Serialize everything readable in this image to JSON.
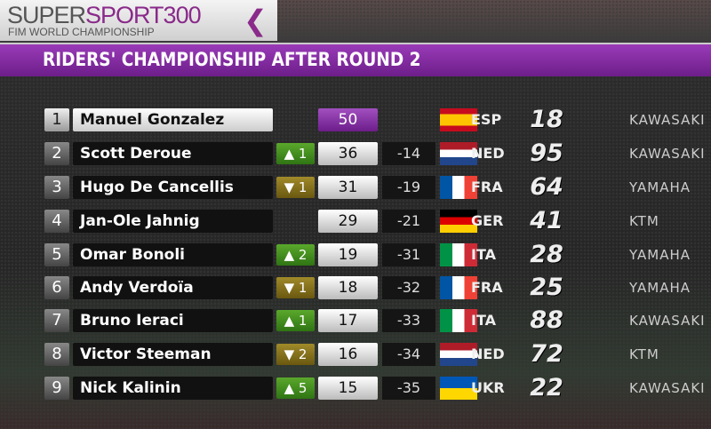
{
  "logo": {
    "brand_a": "SUPER",
    "brand_b": "SPORT300",
    "subtitle": "FIM WORLD CHAMPIONSHIP"
  },
  "title": "RIDERS' CHAMPIONSHIP AFTER ROUND 2",
  "colors": {
    "accent": "#8a2a8a",
    "up": "#4a9a22",
    "down": "#8a7420"
  },
  "rows": [
    {
      "pos": "1",
      "name": "Manuel Gonzalez",
      "change": "",
      "dir": "",
      "points": "50",
      "gap": "",
      "flag": "esp",
      "nation": "ESP",
      "number": "18",
      "maker": "KAWASAKI"
    },
    {
      "pos": "2",
      "name": "Scott Deroue",
      "change": "^ 1",
      "dir": "up",
      "points": "36",
      "gap": "-14",
      "flag": "ned",
      "nation": "NED",
      "number": "95",
      "maker": "KAWASAKI"
    },
    {
      "pos": "3",
      "name": "Hugo De Cancellis",
      "change": "v 1",
      "dir": "down",
      "points": "31",
      "gap": "-19",
      "flag": "fra",
      "nation": "FRA",
      "number": "64",
      "maker": "YAMAHA"
    },
    {
      "pos": "4",
      "name": "Jan-Ole Jahnig",
      "change": "",
      "dir": "",
      "points": "29",
      "gap": "-21",
      "flag": "ger",
      "nation": "GER",
      "number": "41",
      "maker": "KTM"
    },
    {
      "pos": "5",
      "name": "Omar Bonoli",
      "change": "^ 2",
      "dir": "up",
      "points": "19",
      "gap": "-31",
      "flag": "ita",
      "nation": "ITA",
      "number": "28",
      "maker": "YAMAHA"
    },
    {
      "pos": "6",
      "name": "Andy Verdoïa",
      "change": "v 1",
      "dir": "down",
      "points": "18",
      "gap": "-32",
      "flag": "fra",
      "nation": "FRA",
      "number": "25",
      "maker": "YAMAHA"
    },
    {
      "pos": "7",
      "name": "Bruno Ieraci",
      "change": "^ 1",
      "dir": "up",
      "points": "17",
      "gap": "-33",
      "flag": "ita",
      "nation": "ITA",
      "number": "88",
      "maker": "KAWASAKI"
    },
    {
      "pos": "8",
      "name": "Victor Steeman",
      "change": "v 2",
      "dir": "down",
      "points": "16",
      "gap": "-34",
      "flag": "ned",
      "nation": "NED",
      "number": "72",
      "maker": "KTM"
    },
    {
      "pos": "9",
      "name": "Nick Kalinin",
      "change": "^ 5",
      "dir": "up",
      "points": "15",
      "gap": "-35",
      "flag": "ukr",
      "nation": "UKR",
      "number": "22",
      "maker": "KAWASAKI"
    }
  ]
}
